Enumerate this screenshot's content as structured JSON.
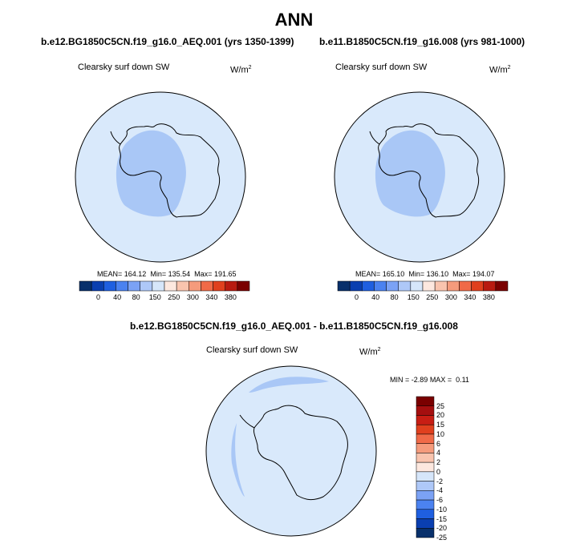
{
  "season": "ANN",
  "colors": {
    "land_outline": "#000000",
    "ocean_fill": "#d9e9fb",
    "interior_fill_left": "#a9c7f6",
    "interior_fill_right": "#a9c7f6",
    "diff_fill": "#d9e9fb",
    "diff_band": "#a9c7f6"
  },
  "panels": [
    {
      "case": "b.e12.BG1850C5CN.f19_g16.0_AEQ.001 (yrs 1350-1399)",
      "variable": "Clearsky surf down SW",
      "units_base": "W/m",
      "units_exp": "2",
      "stats": {
        "mean_label": "MEAN=",
        "mean": "164.12",
        "min_label": "Min=",
        "min": "135.54",
        "max_label": "Max=",
        "max": "191.65"
      }
    },
    {
      "case": "b.e11.B1850C5CN.f19_g16.008 (yrs 981-1000)",
      "variable": "Clearsky surf down SW",
      "units_base": "W/m",
      "units_exp": "2",
      "stats": {
        "mean_label": "MEAN=",
        "mean": "165.10",
        "min_label": "Min=",
        "min": "136.10",
        "max_label": "Max=",
        "max": "194.07"
      }
    }
  ],
  "colorbar_main": {
    "colors": [
      "#08306b",
      "#0a3fb0",
      "#1f5fe0",
      "#4b82f0",
      "#7ba2f5",
      "#aec8f8",
      "#d6e6fa",
      "#fde8df",
      "#f9c4ae",
      "#f59b7c",
      "#f06a48",
      "#e0401e",
      "#b81a10",
      "#7a0000"
    ],
    "tick_labels": [
      "0",
      "40",
      "80",
      "150",
      "250",
      "300",
      "340",
      "380"
    ]
  },
  "difference": {
    "title": "b.e12.BG1850C5CN.f19_g16.0_AEQ.001 - b.e11.B1850C5CN.f19_g16.008",
    "variable": "Clearsky surf down SW",
    "units_base": "W/m",
    "units_exp": "2",
    "minmax": {
      "min_label": "MIN =",
      "min": "-2.89",
      "max_label": "MAX =",
      "max": "0.11"
    },
    "colorbar": {
      "colors": [
        "#7a0000",
        "#a50f0f",
        "#c81e14",
        "#e0401e",
        "#f06a48",
        "#f59b7c",
        "#f9c4ae",
        "#fde8df",
        "#d6e6fa",
        "#aec8f8",
        "#7ba2f5",
        "#4b82f0",
        "#1f5fe0",
        "#0a3fb0",
        "#08306b"
      ],
      "tick_labels": [
        "25",
        "20",
        "15",
        "10",
        "6",
        "4",
        "2",
        "0",
        "-2",
        "-4",
        "-6",
        "-10",
        "-15",
        "-20",
        "-25"
      ]
    }
  }
}
